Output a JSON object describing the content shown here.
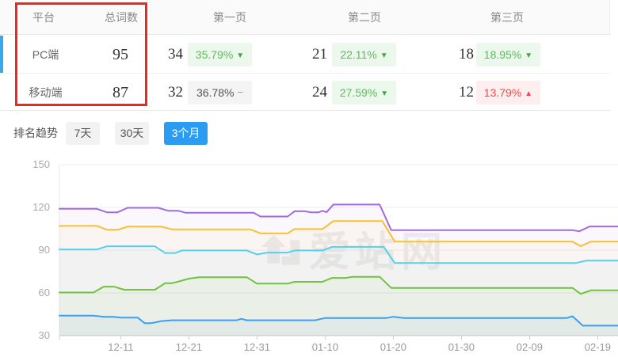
{
  "table": {
    "headers": {
      "platform": "平台",
      "total": "总词数",
      "page1": "第一页",
      "page2": "第二页",
      "page3": "第三页"
    },
    "rows": [
      {
        "platform": "PC端",
        "total": "95",
        "page1": {
          "count": "34",
          "pct": "35.79%",
          "arrow": "▼",
          "direction": "down"
        },
        "page2": {
          "count": "21",
          "pct": "22.11%",
          "arrow": "▼",
          "direction": "down"
        },
        "page3": {
          "count": "18",
          "pct": "18.95%",
          "arrow": "▼",
          "direction": "down"
        }
      },
      {
        "platform": "移动端",
        "total": "87",
        "page1": {
          "count": "32",
          "pct": "36.78%",
          "arrow": "−",
          "direction": "flat"
        },
        "page2": {
          "count": "24",
          "pct": "27.59%",
          "arrow": "▼",
          "direction": "down"
        },
        "page3": {
          "count": "12",
          "pct": "13.79%",
          "arrow": "▲",
          "direction": "up"
        }
      }
    ]
  },
  "trend": {
    "label": "排名趋势",
    "tabs": [
      {
        "label": "7天",
        "active": false
      },
      {
        "label": "30天",
        "active": false
      },
      {
        "label": "3个月",
        "active": true
      }
    ]
  },
  "watermark_text": "爱站网",
  "colors": {
    "tab_active": "#2b9cf2",
    "row_indicator": "#38a9ef",
    "annotation_red": "#f1261d",
    "badge_green_text": "#5dba5d",
    "badge_red_text": "#f0484d"
  },
  "chart_data": {
    "type": "line",
    "title": "排名趋势 3个月",
    "grid": true,
    "legend_position": "none",
    "ylim": [
      30,
      150
    ],
    "y_ticks": [
      30,
      60,
      90,
      120,
      150
    ],
    "x_ticks": [
      "12-11",
      "12-21",
      "12-31",
      "01-10",
      "01-20",
      "01-30",
      "02-09",
      "02-19"
    ],
    "x_tick_days": [
      9,
      19,
      29,
      39,
      49,
      59,
      69,
      79
    ],
    "x_range_days": [
      0,
      82.3
    ],
    "series": [
      {
        "name": "line-purple",
        "color": "#a06be0",
        "points": [
          [
            0,
            119
          ],
          [
            5.5,
            119
          ],
          [
            7,
            116.5
          ],
          [
            8.5,
            116.5
          ],
          [
            10,
            119.7
          ],
          [
            14.5,
            119.7
          ],
          [
            16,
            117.6
          ],
          [
            17.5,
            117.6
          ],
          [
            18.5,
            116.2
          ],
          [
            28.5,
            116.2
          ],
          [
            29.5,
            113.6
          ],
          [
            33.5,
            113.6
          ],
          [
            34.5,
            117.3
          ],
          [
            36,
            117.3
          ],
          [
            37,
            116.5
          ],
          [
            38,
            116.5
          ],
          [
            38.6,
            117.6
          ],
          [
            39.2,
            116.6
          ],
          [
            40.2,
            122
          ],
          [
            47,
            122
          ],
          [
            48.7,
            104
          ],
          [
            75.3,
            104
          ],
          [
            76.3,
            103.2
          ],
          [
            77.8,
            106.6
          ],
          [
            82.3,
            106.6
          ]
        ]
      },
      {
        "name": "line-yellow",
        "color": "#f7c12f",
        "points": [
          [
            0,
            107
          ],
          [
            5.5,
            107
          ],
          [
            7,
            104.3
          ],
          [
            8.5,
            104.3
          ],
          [
            10,
            106.5
          ],
          [
            15,
            106.5
          ],
          [
            16.5,
            104.6
          ],
          [
            28,
            104.6
          ],
          [
            29.5,
            101.8
          ],
          [
            33.5,
            101.8
          ],
          [
            34.5,
            104.8
          ],
          [
            38.6,
            104.8
          ],
          [
            40.2,
            110.4
          ],
          [
            47.4,
            110.4
          ],
          [
            49.2,
            96
          ],
          [
            75.3,
            96
          ],
          [
            76.5,
            92.8
          ],
          [
            78,
            96
          ],
          [
            82.3,
            96
          ]
        ]
      },
      {
        "name": "line-cyan",
        "color": "#54d0ef",
        "points": [
          [
            0,
            90.5
          ],
          [
            5.5,
            90.5
          ],
          [
            7,
            92.7
          ],
          [
            14,
            92.7
          ],
          [
            15.5,
            88
          ],
          [
            17,
            88
          ],
          [
            18,
            89.8
          ],
          [
            27.5,
            89.8
          ],
          [
            29,
            87
          ],
          [
            30.5,
            88.3
          ],
          [
            33.5,
            88.3
          ],
          [
            34.5,
            89.8
          ],
          [
            38.6,
            89.8
          ],
          [
            40,
            92.3
          ],
          [
            47.6,
            92.3
          ],
          [
            49.2,
            81
          ],
          [
            75.8,
            81
          ],
          [
            77.3,
            82.6
          ],
          [
            82.3,
            82.6
          ]
        ]
      },
      {
        "name": "line-green",
        "color": "#6ec43c",
        "points": [
          [
            0,
            60.3
          ],
          [
            5,
            60.3
          ],
          [
            6.5,
            64.4
          ],
          [
            8,
            64.4
          ],
          [
            9.5,
            62.2
          ],
          [
            14,
            62.2
          ],
          [
            15.5,
            66.8
          ],
          [
            16.5,
            66.8
          ],
          [
            17.5,
            68
          ],
          [
            19,
            70
          ],
          [
            20.5,
            71
          ],
          [
            27.5,
            71
          ],
          [
            29,
            66.5
          ],
          [
            33.5,
            66.5
          ],
          [
            34.5,
            67.8
          ],
          [
            38.6,
            67.8
          ],
          [
            40,
            70.5
          ],
          [
            42,
            70.5
          ],
          [
            43,
            71.3
          ],
          [
            47,
            71.3
          ],
          [
            48.7,
            63.5
          ],
          [
            75.3,
            63.5
          ],
          [
            76.5,
            59.3
          ],
          [
            78,
            61.8
          ],
          [
            82.3,
            61.8
          ]
        ]
      },
      {
        "name": "line-blue",
        "color": "#3d9ff0",
        "points": [
          [
            0,
            44
          ],
          [
            5,
            44
          ],
          [
            6.5,
            43.2
          ],
          [
            8,
            43.2
          ],
          [
            9,
            42.6
          ],
          [
            11.5,
            42.6
          ],
          [
            12.5,
            38.8
          ],
          [
            13.5,
            38.8
          ],
          [
            15,
            40.2
          ],
          [
            16.5,
            40.8
          ],
          [
            26,
            40.8
          ],
          [
            26.7,
            41.8
          ],
          [
            27.5,
            40.8
          ],
          [
            37.5,
            40.8
          ],
          [
            39,
            42.4
          ],
          [
            48,
            42.4
          ],
          [
            49,
            43.2
          ],
          [
            50.5,
            42.4
          ],
          [
            74.5,
            42.4
          ],
          [
            75.3,
            43.6
          ],
          [
            76.8,
            37
          ],
          [
            82.3,
            37
          ]
        ]
      }
    ]
  }
}
